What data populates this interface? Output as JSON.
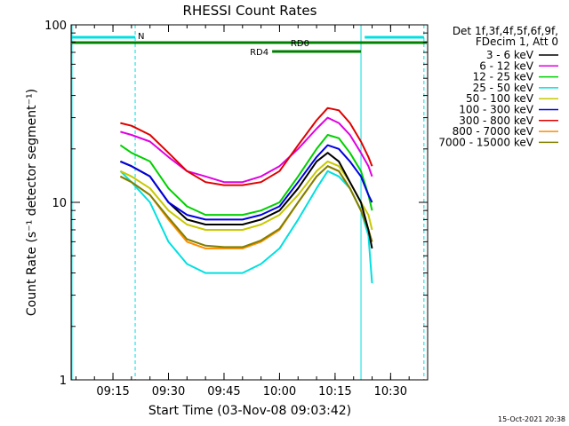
{
  "chart_data": {
    "type": "line",
    "title": "RHESSI Count Rates",
    "xlabel": "Start Time (03-Nov-08 09:03:42)",
    "ylabel": "Count Rate (s⁻¹ detector segment⁻¹)",
    "x_ticks": [
      "09:15",
      "09:30",
      "09:45",
      "10:00",
      "10:15",
      "10:30"
    ],
    "xlim": [
      "09:03:42",
      "10:40"
    ],
    "y_scale": "log",
    "ylim": [
      1,
      100
    ],
    "y_ticks": [
      "1",
      "10",
      "100"
    ],
    "grid": false,
    "legend_position": "right",
    "legend_header": [
      "Det 1f,3f,4f,5f,6f,9f,",
      "FDecim 1, Att 0"
    ],
    "x": [
      "09:17",
      "09:20",
      "09:25",
      "09:30",
      "09:35",
      "09:40",
      "09:45",
      "09:50",
      "09:55",
      "10:00",
      "10:05",
      "10:10",
      "10:13",
      "10:16",
      "10:19",
      "10:22",
      "10:24",
      "10:25"
    ],
    "series": [
      {
        "name": "3 - 6 keV",
        "color": "#000000",
        "values": [
          17,
          16,
          14,
          10,
          8.0,
          7.5,
          7.5,
          7.5,
          8.0,
          9.0,
          12,
          17,
          19,
          17,
          13,
          10,
          7.0,
          5.5
        ]
      },
      {
        "name": "6 - 12 keV",
        "color": "#e000e0",
        "values": [
          25,
          24,
          22,
          18,
          15,
          14,
          13,
          13,
          14,
          16,
          20,
          26,
          30,
          28,
          24,
          19,
          16,
          14
        ]
      },
      {
        "name": "12 - 25 keV",
        "color": "#00d000",
        "values": [
          21,
          19,
          17,
          12,
          9.5,
          8.5,
          8.5,
          8.5,
          9.0,
          10,
          14,
          20,
          24,
          23,
          19,
          15,
          11,
          9
        ]
      },
      {
        "name": "25 - 50 keV",
        "color": "#00e0e0",
        "values": [
          15,
          13,
          10,
          6.0,
          4.5,
          4.0,
          4.0,
          4.0,
          4.5,
          5.5,
          8.0,
          12,
          15,
          14,
          12,
          9,
          6.5,
          3.5
        ]
      },
      {
        "name": "50 - 100 keV",
        "color": "#c8c800",
        "values": [
          15,
          14,
          12,
          9.0,
          7.5,
          7.0,
          7.0,
          7.0,
          7.5,
          8.5,
          11,
          15,
          17,
          16,
          13,
          10,
          8.5,
          7
        ]
      },
      {
        "name": "100 - 300 keV",
        "color": "#0000e0",
        "values": [
          17,
          16,
          14,
          10,
          8.5,
          8.0,
          8.0,
          8.0,
          8.5,
          9.5,
          13,
          18,
          21,
          20,
          17,
          14,
          11,
          10
        ]
      },
      {
        "name": "300 - 800 keV",
        "color": "#e00000",
        "values": [
          28,
          27,
          24,
          19,
          15,
          13,
          12.5,
          12.5,
          13,
          15,
          21,
          29,
          34,
          33,
          28,
          22,
          18,
          16
        ]
      },
      {
        "name": "800 - 7000 keV",
        "color": "#ff8c00",
        "values": [
          14,
          13,
          11,
          8.0,
          6.0,
          5.5,
          5.5,
          5.5,
          6.0,
          7.0,
          10,
          14,
          16,
          15,
          12,
          9,
          7,
          6
        ]
      },
      {
        "name": "7000 - 15000 keV",
        "color": "#808000",
        "values": [
          14,
          13,
          11,
          8.2,
          6.2,
          5.7,
          5.6,
          5.6,
          6.1,
          7.1,
          10,
          14,
          16,
          15,
          12,
          9,
          7,
          6
        ]
      }
    ],
    "annotations": [
      {
        "label": "N",
        "color": "#00e0e0",
        "start": "09:03:42",
        "end": "09:21"
      },
      {
        "label": "",
        "color": "#00e0e0",
        "start": "10:23",
        "end": "10:39"
      },
      {
        "label": "RD0",
        "color": "#008000",
        "start": "09:03:42",
        "end": "10:40"
      },
      {
        "label": "RD4",
        "color": "#008000",
        "start": "09:58",
        "end": "10:22"
      }
    ],
    "vertical_lines": [
      {
        "time": "09:03:42",
        "color": "#00e0e0",
        "style": "solid"
      },
      {
        "time": "09:21",
        "color": "#00e0e0",
        "style": "dashed"
      },
      {
        "time": "10:22",
        "color": "#00e0e0",
        "style": "solid"
      },
      {
        "time": "10:39",
        "color": "#00e0e0",
        "style": "dashed"
      }
    ]
  },
  "footer_timestamp": "15-Oct-2021 20:38"
}
